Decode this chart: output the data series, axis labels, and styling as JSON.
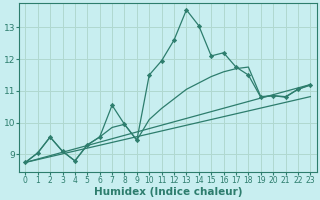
{
  "xlabel": "Humidex (Indice chaleur)",
  "bg_color": "#c8eef0",
  "grid_color": "#b0d8d0",
  "line_color": "#2d7d6d",
  "xlim": [
    -0.5,
    23.5
  ],
  "ylim": [
    8.45,
    13.75
  ],
  "xticks": [
    0,
    1,
    2,
    3,
    4,
    5,
    6,
    7,
    8,
    9,
    10,
    11,
    12,
    13,
    14,
    15,
    16,
    17,
    18,
    19,
    20,
    21,
    22,
    23
  ],
  "yticks": [
    9,
    10,
    11,
    12,
    13
  ],
  "line1_x": [
    0,
    1,
    2,
    3,
    4,
    5,
    6,
    7,
    8,
    9,
    10,
    11,
    12,
    13,
    14,
    15,
    16,
    17,
    18,
    19,
    20,
    21,
    22,
    23
  ],
  "line1_y": [
    8.75,
    9.05,
    9.55,
    9.1,
    8.8,
    9.3,
    9.55,
    10.55,
    9.95,
    9.45,
    11.5,
    11.95,
    12.6,
    13.55,
    13.05,
    12.1,
    12.2,
    11.75,
    11.5,
    10.8,
    10.85,
    10.8,
    11.05,
    11.2
  ],
  "line2_x": [
    0,
    1,
    2,
    3,
    4,
    5,
    6,
    7,
    8,
    9,
    10,
    11,
    12,
    13,
    14,
    15,
    16,
    17,
    18,
    19,
    20,
    21,
    22,
    23
  ],
  "line2_y": [
    8.75,
    9.05,
    9.55,
    9.1,
    8.8,
    9.3,
    9.55,
    9.85,
    9.95,
    9.45,
    10.1,
    10.45,
    10.75,
    11.05,
    11.25,
    11.45,
    11.6,
    11.7,
    11.75,
    10.82,
    10.85,
    10.82,
    11.05,
    11.18
  ],
  "line3_x": [
    0,
    23
  ],
  "line3_y": [
    8.75,
    11.2
  ],
  "line4_x": [
    0,
    23
  ],
  "line4_y": [
    8.75,
    10.82
  ]
}
